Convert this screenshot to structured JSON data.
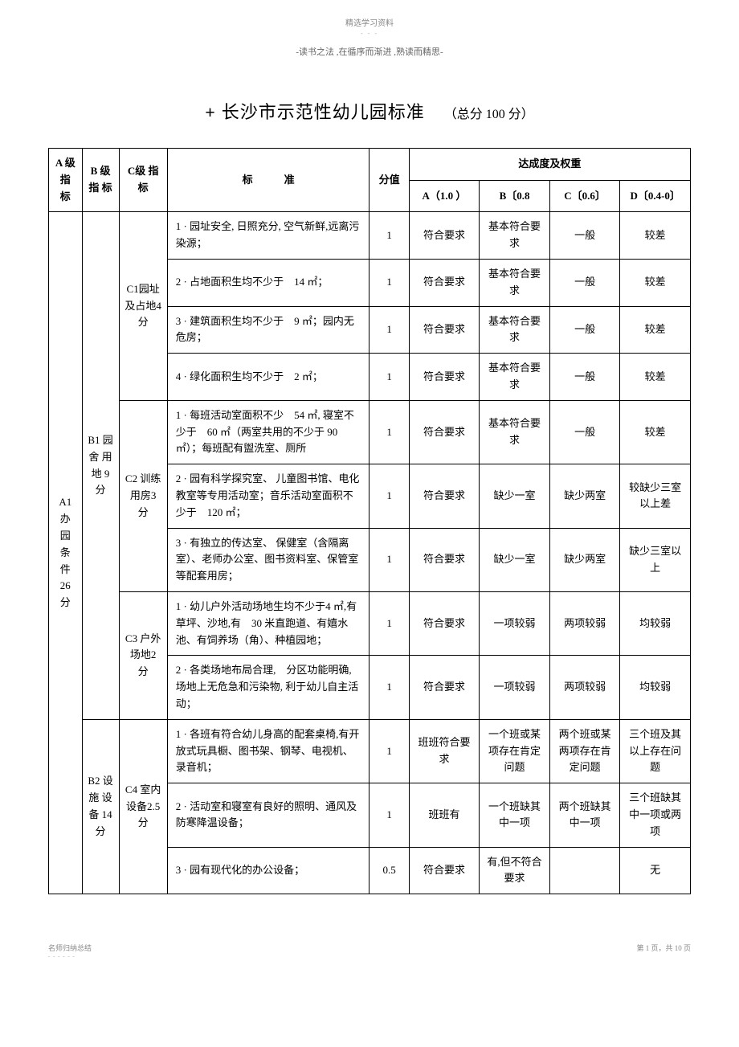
{
  "header": {
    "top": "精选学习资料",
    "sub": "-读书之法 ,在循序而渐进 ,熟读而精思-"
  },
  "title": {
    "plus": "+",
    "main": "长沙市示范性幼儿园标准",
    "score": "（总分 100 分）"
  },
  "tableHeaders": {
    "colA": "A 级 指 标",
    "colB": "B 级 指 标",
    "colC": "C级 指标",
    "colStd": "标　　　准",
    "colScore": "分值",
    "colRating": "达成度及权重",
    "rA": "A（1.0 ）",
    "rB": "B〔0.8",
    "rC": "C〔0.6〕",
    "rD": "D〔0.4-0〕"
  },
  "a1": {
    "label": "A1 办 园 条 件 26 分"
  },
  "b1": {
    "label": "B1 园 舍 用 地 9 分"
  },
  "b2": {
    "label": "B2 设 施 设 备 14 分"
  },
  "c1": {
    "label": "C1园址及占地4 分"
  },
  "c2": {
    "label": "C2 训练用房3 分"
  },
  "c3": {
    "label": "C3 户外场地2 分"
  },
  "c4": {
    "label": "C4 室内设备2.5 分"
  },
  "rows": [
    {
      "std": "1 · 园址安全, 日照充分, 空气新鲜,远离污染源；",
      "score": "1",
      "a": "符合要求",
      "b": "基本符合要求",
      "c": "一般",
      "d": "较差"
    },
    {
      "std": "2 · 占地面积生均不少于　14 ㎡；",
      "score": "1",
      "a": "符合要求",
      "b": "基本符合要求",
      "c": "一般",
      "d": "较差"
    },
    {
      "std": "3 · 建筑面积生均不少于　9 ㎡；园内无危房；",
      "score": "1",
      "a": "符合要求",
      "b": "基本符合要求",
      "c": "一般",
      "d": "较差"
    },
    {
      "std": "4 · 绿化面积生均不少于　2 ㎡；",
      "score": "1",
      "a": "符合要求",
      "b": "基本符合要求",
      "c": "一般",
      "d": "较差"
    },
    {
      "std": "1 · 每班活动室面积不少　54 ㎡, 寝室不少于　60 ㎡（两室共用的不少于 90 ㎡）；每班配有盥洗室、厕所",
      "score": "1",
      "a": "符合要求",
      "b": "基本符合要求",
      "c": "一般",
      "d": "较差"
    },
    {
      "std": "2 · 园有科学探究室、 儿童图书馆、电化教室等专用活动室；音乐活动室面积不少于　120 ㎡；",
      "score": "1",
      "a": "符合要求",
      "b": "缺少一室",
      "c": "缺少两室",
      "d": "较缺少三室以上差"
    },
    {
      "std": "3 · 有独立的传达室、 保健室（含隔离室）、老师办公室、图书资料室、保管室等配套用房；",
      "score": "1",
      "a": "符合要求",
      "b": "缺少一室",
      "c": "缺少两室",
      "d": "缺少三室以上"
    },
    {
      "std": "1 · 幼儿户外活动场地生均不少于4 ㎡,有草坪、沙地,有　30 米直跑道、有嬉水池、有饲养场（角）、种植园地；",
      "score": "1",
      "a": "符合要求",
      "b": "一项较弱",
      "c": "两项较弱",
      "d": "均较弱"
    },
    {
      "std": " 2 · 各类场地布局合理,　分区功能明确,场地上无危急和污染物, 利于幼儿自主活动；",
      "score": "1",
      "a": "符合要求",
      "b": "一项较弱",
      "c": "两项较弱",
      "d": "均较弱"
    },
    {
      "std": "1 · 各班有符合幼儿身高的配套桌椅,有开放式玩具橱、图书架、钢琴、电视机、录音机；",
      "score": "1",
      "a": "班班符合要求",
      "b": "一个班或某项存在肯定问题",
      "c": "两个班或某两项存在肯定问题",
      "d": "三个班及其以上存在问题"
    },
    {
      "std": "2 · 活动室和寝室有良好的照明、通风及防寒降温设备；",
      "score": "1",
      "a": "班班有",
      "b": "一个班缺其中一项",
      "c": "两个班缺其中一项",
      "d": "三个班缺其中一项或两项"
    },
    {
      "std": "3 · 园有现代化的办公设备；",
      "score": "0.5",
      "a": "符合要求",
      "b": "有,但不符合要求",
      "c": "",
      "d": "无"
    }
  ],
  "footer": {
    "left": "名师归纳总结",
    "right": "第 1 页，共 10 页"
  }
}
